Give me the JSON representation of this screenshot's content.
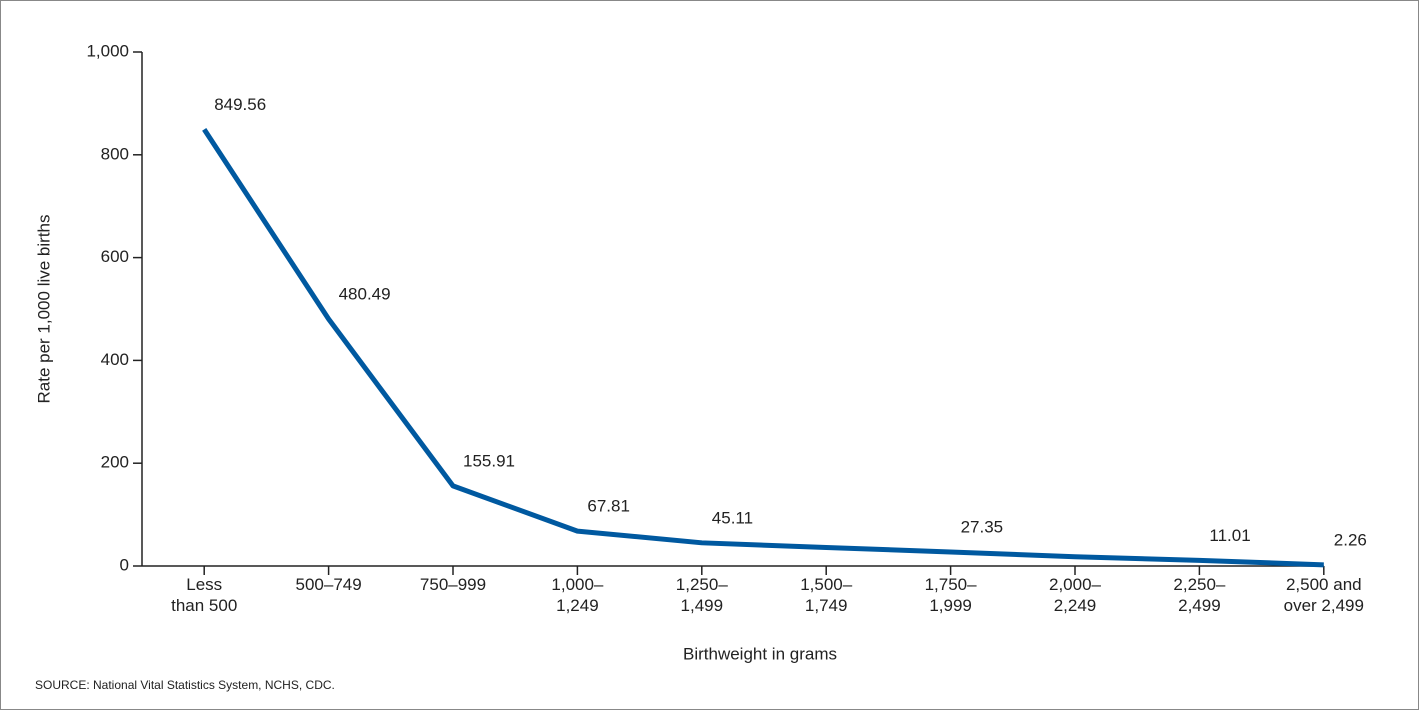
{
  "chart_data": {
    "type": "line",
    "categories": [
      "Less\nthan 500",
      "500–749",
      "750–999",
      "1,000–\n1,249",
      "1,250–\n1,499",
      "1,500–\n1,749",
      "1,750–\n1,999",
      "2,000–\n2,249",
      "2,250–\n2,499",
      "2,500 and\nover 2,499"
    ],
    "values": [
      849.56,
      480.49,
      155.91,
      67.81,
      45.11,
      36,
      27.35,
      18,
      11.01,
      2.26
    ],
    "value_labels": [
      "849.56",
      "480.49",
      "155.91",
      "67.81",
      "45.11",
      null,
      "27.35",
      null,
      "11.01",
      "2.26"
    ],
    "color": "#0059a0",
    "ylim": [
      0,
      1000
    ],
    "yticks": [
      0,
      200,
      400,
      600,
      800,
      {
        "value": 1000,
        "label": "1,000"
      }
    ],
    "ylabel": "Rate per 1,000 live births",
    "xlabel": "Birthweight in grams",
    "source": "SOURCE: National Vital Statistics System, NCHS, CDC."
  }
}
